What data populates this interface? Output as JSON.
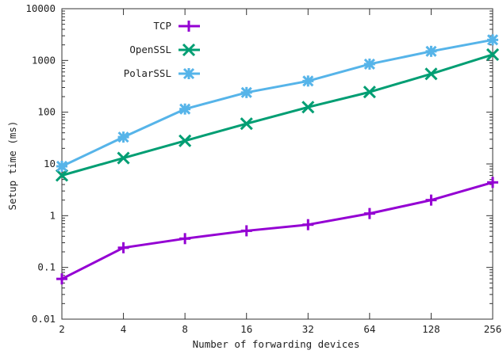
{
  "chart_data": {
    "type": "line",
    "xlabel": "Number of forwarding devices",
    "ylabel": "Setup time (ms)",
    "x": [
      2,
      4,
      8,
      16,
      32,
      64,
      128,
      256
    ],
    "x_scale": "log2",
    "y_scale": "log10",
    "ylim": [
      0.01,
      10000
    ],
    "y_ticks": [
      "0.01",
      "0.1",
      "1",
      "10",
      "100",
      "1000",
      "10000"
    ],
    "x_ticks": [
      "2",
      "4",
      "8",
      "16",
      "32",
      "64",
      "128",
      "256"
    ],
    "legend_position": "top-left",
    "series": [
      {
        "name": "TCP",
        "color": "#9400D3",
        "marker": "plus",
        "values": [
          0.06,
          0.24,
          0.36,
          0.51,
          0.67,
          1.1,
          2.0,
          4.4
        ]
      },
      {
        "name": "OpenSSL",
        "color": "#009E73",
        "marker": "x",
        "values": [
          6,
          13,
          28,
          60,
          125,
          245,
          550,
          1300
        ]
      },
      {
        "name": "PolarSSL",
        "color": "#56B4E9",
        "marker": "star",
        "values": [
          9,
          33,
          115,
          240,
          400,
          850,
          1500,
          2500
        ]
      }
    ]
  }
}
